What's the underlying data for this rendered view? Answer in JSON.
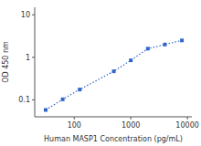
{
  "chart_data": {
    "type": "line",
    "xlabel": "Human MASP1 Concentration (pg/mL)",
    "ylabel": "OD 450 nm",
    "x": [
      31.25,
      62.5,
      125,
      500,
      1000,
      2000,
      4000,
      8000
    ],
    "values": [
      0.058,
      0.103,
      0.175,
      0.47,
      0.85,
      1.6,
      2.0,
      2.5
    ],
    "xlim": [
      20,
      12000
    ],
    "ylim": [
      0.04,
      15
    ],
    "xticks": [
      100,
      1000,
      10000
    ],
    "yticks": [
      0.1,
      1,
      10
    ],
    "log": true,
    "grid": false,
    "marker": "square",
    "line_style": "dotted"
  }
}
